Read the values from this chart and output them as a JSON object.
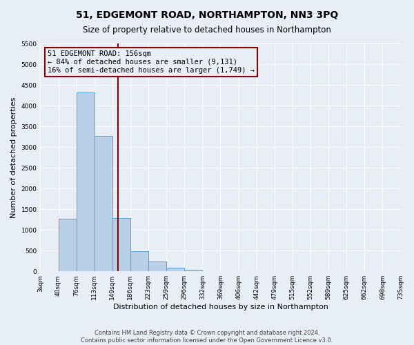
{
  "title": "51, EDGEMONT ROAD, NORTHAMPTON, NN3 3PQ",
  "subtitle": "Size of property relative to detached houses in Northampton",
  "xlabel": "Distribution of detached houses by size in Northampton",
  "ylabel": "Number of detached properties",
  "footer_lines": [
    "Contains HM Land Registry data © Crown copyright and database right 2024.",
    "Contains public sector information licensed under the Open Government Licence v3.0."
  ],
  "bin_labels": [
    "3sqm",
    "40sqm",
    "76sqm",
    "113sqm",
    "149sqm",
    "186sqm",
    "223sqm",
    "259sqm",
    "296sqm",
    "332sqm",
    "369sqm",
    "406sqm",
    "442sqm",
    "479sqm",
    "515sqm",
    "552sqm",
    "589sqm",
    "625sqm",
    "662sqm",
    "698sqm",
    "735sqm"
  ],
  "bar_values": [
    0,
    1270,
    4320,
    3270,
    1280,
    480,
    230,
    80,
    40,
    0,
    0,
    0,
    0,
    0,
    0,
    0,
    0,
    0,
    0,
    0
  ],
  "bar_color": "#b8d0e8",
  "bar_edge_color": "#5a9fd4",
  "ylim": [
    0,
    5500
  ],
  "yticks": [
    0,
    500,
    1000,
    1500,
    2000,
    2500,
    3000,
    3500,
    4000,
    4500,
    5000,
    5500
  ],
  "vline_x": 4.3,
  "vline_color": "#8b0000",
  "annotation_title": "51 EDGEMONT ROAD: 156sqm",
  "annotation_line1": "← 84% of detached houses are smaller (9,131)",
  "annotation_line2": "16% of semi-detached houses are larger (1,749) →",
  "bg_color": "#e8eef5",
  "grid_color": "#ffffff",
  "title_fontsize": 10,
  "subtitle_fontsize": 8.5,
  "axis_label_fontsize": 8,
  "tick_fontsize": 6.5,
  "annotation_fontsize": 7.5,
  "ylabel_fontsize": 8
}
